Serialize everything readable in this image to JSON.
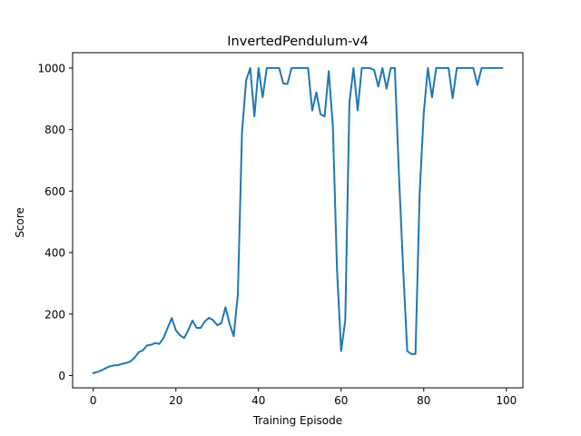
{
  "chart_data": {
    "type": "line",
    "title": "InvertedPendulum-v4",
    "xlabel": "Training Episode",
    "ylabel": "Score",
    "xlim": [
      -5,
      104
    ],
    "ylim": [
      -40,
      1050
    ],
    "xticks": [
      0,
      20,
      40,
      60,
      80,
      100
    ],
    "yticks": [
      0,
      200,
      400,
      600,
      800,
      1000
    ],
    "grid": false,
    "line_color": "#1f77b4",
    "series": [
      {
        "x": [
          0,
          1,
          2,
          3,
          4,
          5,
          6,
          7,
          8,
          9,
          10,
          11,
          12,
          13,
          14,
          15,
          16,
          17,
          18,
          19,
          20,
          21,
          22,
          23,
          24,
          25,
          26,
          27,
          28,
          29,
          30,
          31,
          32,
          33,
          34,
          35,
          36,
          37,
          38,
          39,
          40,
          41,
          42,
          43,
          44,
          45,
          46,
          47,
          48,
          49,
          50,
          51,
          52,
          53,
          54,
          55,
          56,
          57,
          58,
          59,
          60,
          61,
          62,
          63,
          64,
          65,
          66,
          67,
          68,
          69,
          70,
          71,
          72,
          73,
          74,
          75,
          76,
          77,
          78,
          79,
          80,
          81,
          82,
          83,
          84,
          85,
          86,
          87,
          88,
          89,
          90,
          91,
          92,
          93,
          94,
          95,
          96,
          97,
          98,
          99
        ],
        "values": [
          8,
          12,
          17,
          24,
          30,
          33,
          34,
          38,
          41,
          46,
          58,
          76,
          82,
          98,
          100,
          106,
          103,
          122,
          155,
          187,
          147,
          131,
          122,
          148,
          179,
          155,
          155,
          176,
          188,
          180,
          164,
          170,
          222,
          168,
          128,
          265,
          790,
          960,
          1000,
          843,
          1000,
          905,
          1000,
          1000,
          1000,
          1000,
          950,
          948,
          1000,
          1000,
          1000,
          1000,
          1000,
          862,
          921,
          850,
          843,
          990,
          810,
          345,
          80,
          180,
          887,
          1000,
          862,
          1000,
          1000,
          1000,
          993,
          940,
          1000,
          933,
          1000,
          1000,
          652,
          350,
          80,
          70,
          70,
          590,
          854,
          1000,
          905,
          1000,
          1000,
          1000,
          1000,
          902,
          1000,
          1000,
          1000,
          1000,
          1000,
          945,
          1000,
          1000,
          1000,
          1000,
          1000,
          1000
        ]
      }
    ]
  }
}
